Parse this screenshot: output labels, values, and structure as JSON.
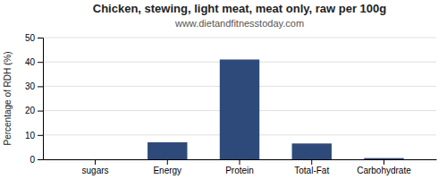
{
  "chart_data": {
    "type": "bar",
    "title": "Chicken, stewing, light meat, meat only, raw per 100g",
    "subtitle": "www.dietandfitnesstoday.com",
    "categories": [
      "sugars",
      "Energy",
      "Protein",
      "Total-Fat",
      "Carbohydrate"
    ],
    "values": [
      0,
      7,
      41,
      6.5,
      0.5
    ],
    "color": "#2e4a7a",
    "ylabel": "Percentage of RDH (%)",
    "ylim": [
      0,
      50
    ],
    "yticks": [
      0,
      10,
      20,
      30,
      40,
      50
    ],
    "grid": true
  }
}
